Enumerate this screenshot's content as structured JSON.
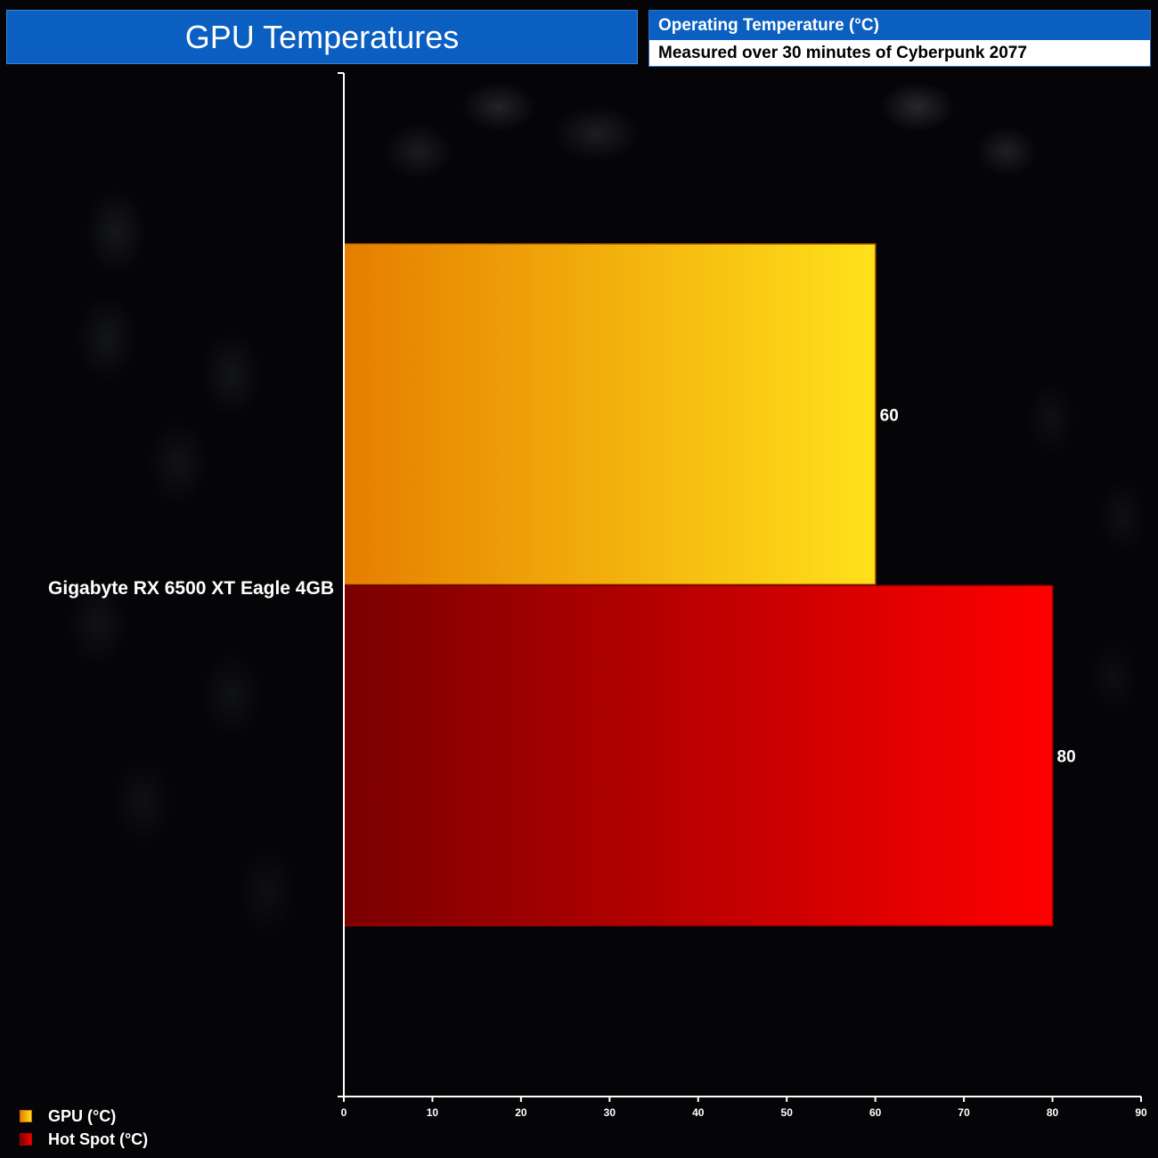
{
  "header": {
    "title": "GPU Temperatures",
    "subtitle_top": "Operating Temperature (°C)",
    "subtitle_bottom": "Measured over 30 minutes of Cyberpunk 2077"
  },
  "chart_data": {
    "type": "bar",
    "orientation": "horizontal",
    "categories": [
      "Gigabyte RX 6500 XT Eagle 4GB"
    ],
    "series": [
      {
        "name": "GPU (°C)",
        "values": [
          60
        ],
        "color_start": "#e67e00",
        "color_end": "#ffe11a",
        "border": "#c86a00"
      },
      {
        "name": "Hot Spot (°C)",
        "values": [
          80
        ],
        "color_start": "#7a0000",
        "color_end": "#ff0000",
        "border": "#b00000"
      }
    ],
    "xlim": [
      0,
      90
    ],
    "xticks": [
      0,
      10,
      20,
      30,
      40,
      50,
      60,
      70,
      80,
      90
    ],
    "grid": false,
    "legend_position": "bottom-left"
  }
}
